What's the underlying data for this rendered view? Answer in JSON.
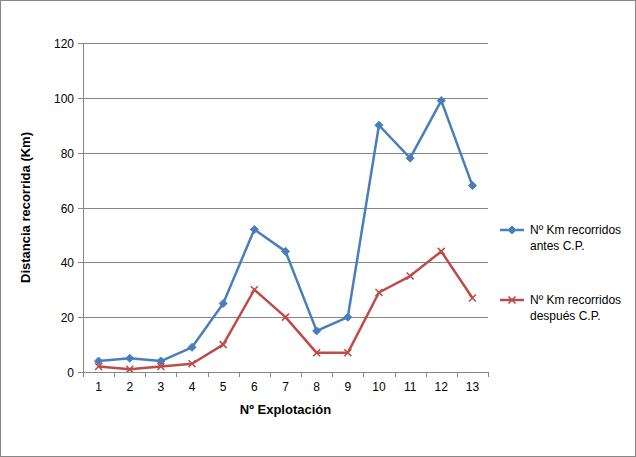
{
  "chart_data": {
    "type": "line",
    "x_label": "Nº Explotación",
    "y_label": "Distancia recorrida (Km)",
    "categories": [
      "1",
      "2",
      "3",
      "4",
      "5",
      "6",
      "7",
      "8",
      "9",
      "10",
      "11",
      "12",
      "13"
    ],
    "series": [
      {
        "name": "Nº Km recorridos antes C.P.",
        "color": "#4a7ebb",
        "marker": "diamond",
        "line_style": "solid",
        "values": [
          4,
          5,
          4,
          9,
          25,
          52,
          44,
          15,
          20,
          90,
          78,
          99,
          68
        ]
      },
      {
        "name": "Nº Km recorridos después C.P.",
        "color": "#be4b48",
        "marker": "x",
        "line_style": "solid",
        "values": [
          2,
          1,
          2,
          3,
          10,
          30,
          20,
          7,
          7,
          29,
          35,
          44,
          27
        ]
      }
    ],
    "ylim": [
      0,
      120
    ],
    "yticks": [
      0,
      20,
      40,
      60,
      80,
      100,
      120
    ],
    "grid": true,
    "legend": "right"
  }
}
